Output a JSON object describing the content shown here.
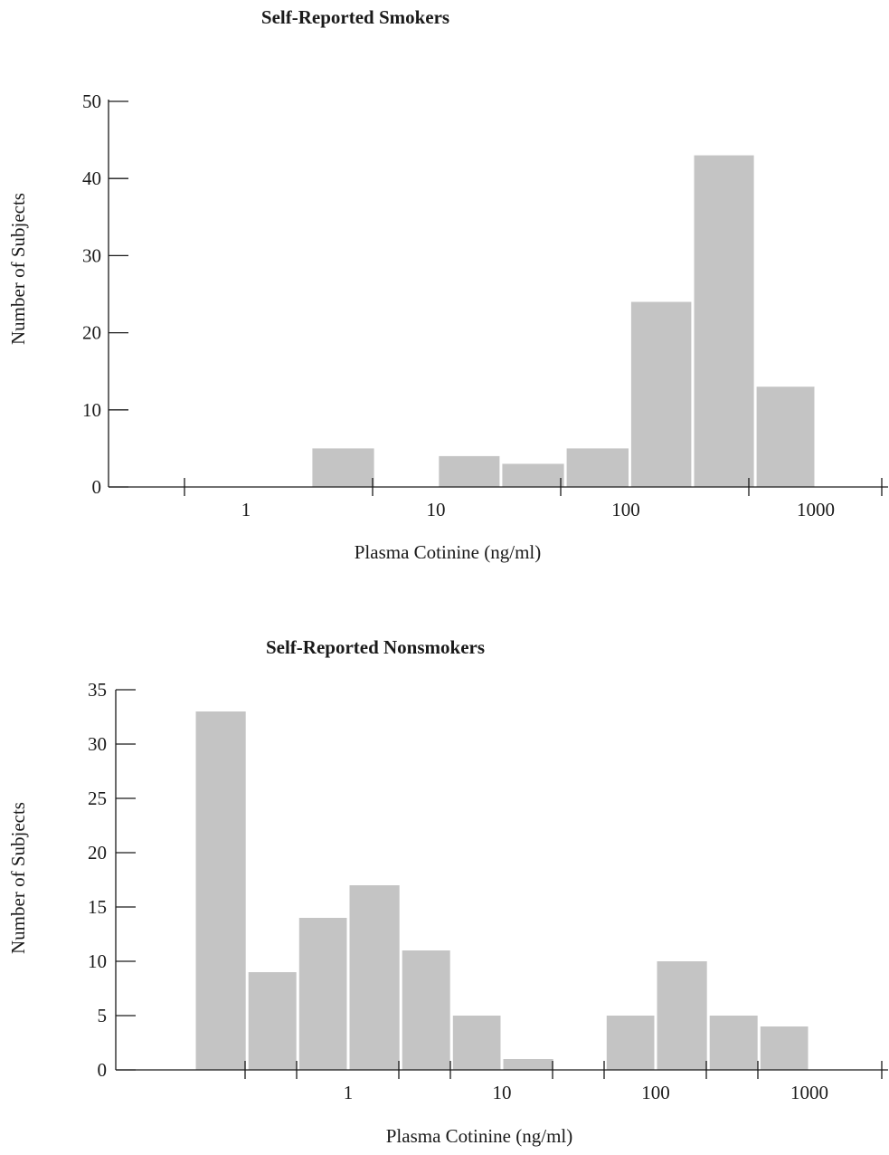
{
  "chart_data": [
    {
      "type": "bar",
      "title": "Self-Reported Smokers",
      "xlabel": "Plasma Cotinine (ng/ml)",
      "ylabel": "Number of Subjects",
      "x_scale": "log",
      "x_tick_labels": [
        "1",
        "10",
        "100",
        "1000"
      ],
      "y_ticks": [
        "0",
        "10",
        "20",
        "30",
        "40",
        "50"
      ],
      "ylim": [
        0,
        50
      ],
      "bins": [
        {
          "range": [
            2.2,
            4.8
          ],
          "value": 5
        },
        {
          "range": [
            10.2,
            22
          ],
          "value": 4
        },
        {
          "range": [
            22,
            48
          ],
          "value": 3
        },
        {
          "range": [
            48,
            105
          ],
          "value": 5
        },
        {
          "range": [
            105,
            225
          ],
          "value": 24
        },
        {
          "range": [
            225,
            480
          ],
          "value": 43
        },
        {
          "range": [
            480,
            1000
          ],
          "value": 13
        }
      ],
      "grid": false,
      "bar_color": "#c4c4c4"
    },
    {
      "type": "bar",
      "title": "Self-Reported Nonsmokers",
      "xlabel": "Plasma Cotinine (ng/ml)",
      "ylabel": "Number of Subjects",
      "x_scale": "log",
      "x_tick_labels": [
        "1",
        "10",
        "100",
        "1000"
      ],
      "y_ticks": [
        "0",
        "5",
        "10",
        "15",
        "20",
        "25",
        "30",
        "35"
      ],
      "ylim": [
        0,
        35
      ],
      "bins": [
        {
          "range": [
            0.1,
            0.22
          ],
          "value": 33
        },
        {
          "range": [
            0.22,
            0.47
          ],
          "value": 9
        },
        {
          "range": [
            0.47,
            1.0
          ],
          "value": 14
        },
        {
          "range": [
            1.0,
            2.2
          ],
          "value": 17
        },
        {
          "range": [
            2.2,
            4.7
          ],
          "value": 11
        },
        {
          "range": [
            4.7,
            10
          ],
          "value": 5
        },
        {
          "range": [
            10,
            22
          ],
          "value": 1
        },
        {
          "range": [
            47,
            100
          ],
          "value": 5
        },
        {
          "range": [
            100,
            220
          ],
          "value": 10
        },
        {
          "range": [
            220,
            470
          ],
          "value": 5
        },
        {
          "range": [
            470,
            1000
          ],
          "value": 4
        }
      ],
      "grid": false,
      "bar_color": "#c4c4c4"
    }
  ]
}
